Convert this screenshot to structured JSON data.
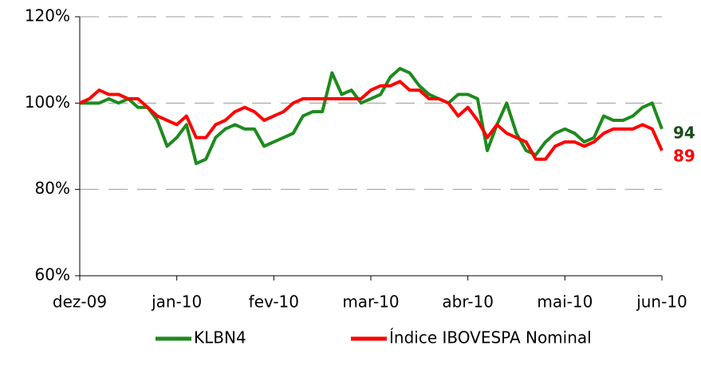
{
  "chart_data": {
    "type": "line",
    "categories": [
      "dez-09",
      null,
      null,
      null,
      null,
      null,
      null,
      null,
      null,
      null,
      "jan-10",
      null,
      null,
      null,
      null,
      null,
      null,
      null,
      null,
      null,
      "fev-10",
      null,
      null,
      null,
      null,
      null,
      null,
      null,
      null,
      null,
      "mar-10",
      null,
      null,
      null,
      null,
      null,
      null,
      null,
      null,
      null,
      "abr-10",
      null,
      null,
      null,
      null,
      null,
      null,
      null,
      null,
      null,
      "mai-10",
      null,
      null,
      null,
      null,
      null,
      null,
      null,
      null,
      null,
      "jun-10"
    ],
    "series": [
      {
        "name": "KLBN4",
        "color": "#1e8a1e",
        "label_color": "#1a4d1a",
        "values": [
          100,
          100,
          100,
          101,
          100,
          101,
          99,
          99,
          96,
          90,
          92,
          95,
          86,
          87,
          92,
          94,
          95,
          94,
          94,
          90,
          91,
          92,
          93,
          97,
          98,
          98,
          107,
          102,
          103,
          100,
          101,
          102,
          106,
          108,
          107,
          104,
          102,
          101,
          100,
          102,
          102,
          101,
          89,
          95,
          100,
          93,
          89,
          88,
          91,
          93,
          94,
          93,
          91,
          92,
          97,
          96,
          96,
          97,
          99,
          100,
          94
        ]
      },
      {
        "name": "Índice IBOVESPA Nominal",
        "color": "#ff0000",
        "label_color": "#ff0000",
        "values": [
          100,
          101,
          103,
          102,
          102,
          101,
          101,
          99,
          97,
          96,
          95,
          97,
          92,
          92,
          95,
          96,
          98,
          99,
          98,
          96,
          97,
          98,
          100,
          101,
          101,
          101,
          101,
          101,
          101,
          101,
          103,
          104,
          104,
          105,
          103,
          103,
          101,
          101,
          100,
          97,
          99,
          96,
          92,
          95,
          93,
          92,
          91,
          87,
          87,
          90,
          91,
          91,
          90,
          91,
          93,
          94,
          94,
          94,
          95,
          94,
          89
        ]
      }
    ],
    "ylim": [
      60,
      120
    ],
    "yticks": [
      {
        "value": 60,
        "label": "60%"
      },
      {
        "value": 80,
        "label": "80%"
      },
      {
        "value": 100,
        "label": "100%"
      },
      {
        "value": 120,
        "label": "120%"
      }
    ],
    "grid": true
  }
}
